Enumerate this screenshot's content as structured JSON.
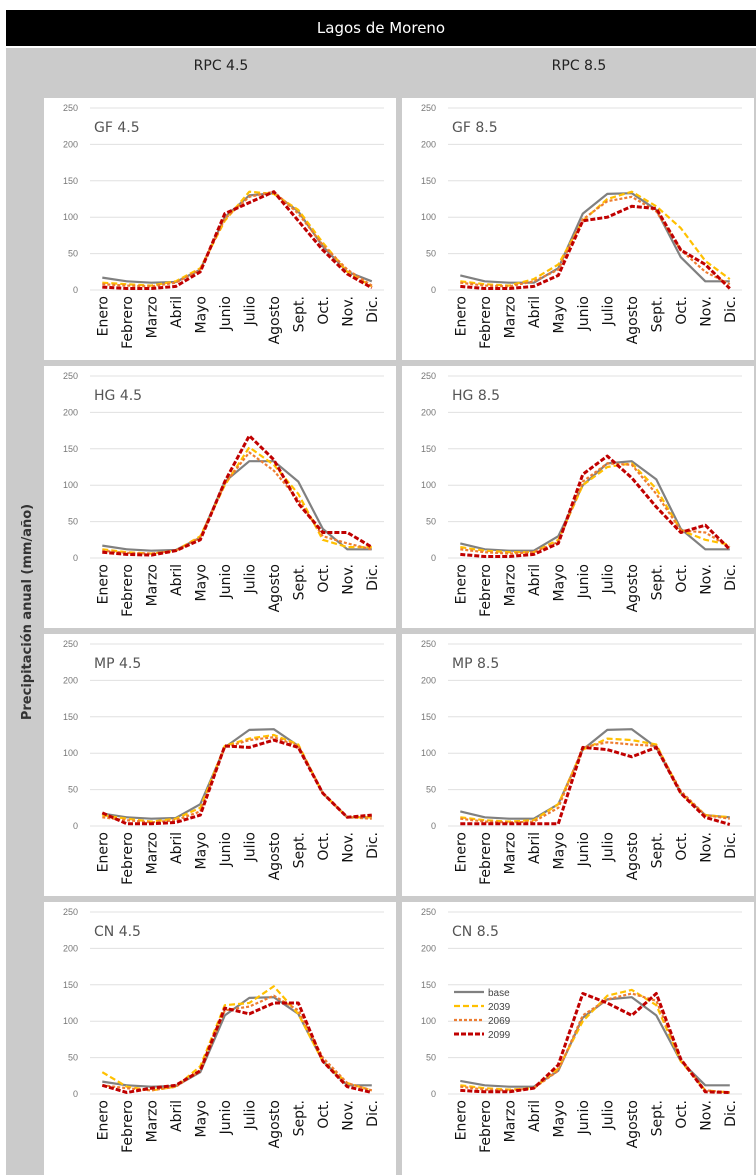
{
  "figure": {
    "title": "Lagos de Moreno",
    "columns": [
      "RPC 4.5",
      "RPC 8.5"
    ],
    "ylabel": "Precipitación anual (mm/año)"
  },
  "months": [
    "Enero",
    "Febrero",
    "Marzo",
    "Abril",
    "Mayo",
    "Junio",
    "Julio",
    "Agosto",
    "Sept.",
    "Oct.",
    "Nov.",
    "Dic."
  ],
  "legend": [
    "base",
    "2039",
    "2069",
    "2099"
  ],
  "colors": {
    "base": "#808080",
    "2039": "#ffc000",
    "2069": "#ed7d31",
    "2099": "#c00000"
  },
  "chart_data": [
    {
      "type": "line",
      "title": "GF 4.5",
      "ylim": [
        0,
        250
      ],
      "yticks": [
        0,
        50,
        100,
        150,
        200,
        250
      ],
      "x": [
        "Enero",
        "Febrero",
        "Marzo",
        "Abril",
        "Mayo",
        "Junio",
        "Julio",
        "Agosto",
        "Sept.",
        "Oct.",
        "Nov.",
        "Dic."
      ],
      "series": [
        {
          "name": "base",
          "values": [
            17,
            12,
            10,
            11,
            28,
            100,
            130,
            133,
            108,
            60,
            25,
            12
          ]
        },
        {
          "name": "2039",
          "values": [
            10,
            8,
            6,
            12,
            30,
            95,
            135,
            132,
            110,
            65,
            25,
            5
          ]
        },
        {
          "name": "2069",
          "values": [
            8,
            6,
            5,
            10,
            28,
            98,
            128,
            135,
            105,
            62,
            28,
            6
          ]
        },
        {
          "name": "2099",
          "values": [
            4,
            2,
            2,
            5,
            25,
            105,
            120,
            135,
            95,
            55,
            22,
            3
          ]
        }
      ]
    },
    {
      "type": "line",
      "title": "GF 8.5",
      "ylim": [
        0,
        250
      ],
      "yticks": [
        0,
        50,
        100,
        150,
        200,
        250
      ],
      "x": [
        "Enero",
        "Febrero",
        "Marzo",
        "Abril",
        "Mayo",
        "Junio",
        "Julio",
        "Agosto",
        "Sept.",
        "Oct.",
        "Nov.",
        "Dic."
      ],
      "series": [
        {
          "name": "base",
          "values": [
            20,
            12,
            10,
            10,
            30,
            105,
            132,
            133,
            110,
            45,
            12,
            12
          ]
        },
        {
          "name": "2039",
          "values": [
            12,
            8,
            6,
            15,
            35,
            95,
            125,
            135,
            115,
            85,
            40,
            15
          ]
        },
        {
          "name": "2069",
          "values": [
            10,
            6,
            5,
            12,
            28,
            97,
            122,
            128,
            108,
            55,
            25,
            8
          ]
        },
        {
          "name": "2099",
          "values": [
            5,
            2,
            2,
            5,
            20,
            95,
            100,
            115,
            112,
            55,
            35,
            2
          ]
        }
      ]
    },
    {
      "type": "line",
      "title": "HG 4.5",
      "ylim": [
        0,
        250
      ],
      "yticks": [
        0,
        50,
        100,
        150,
        200,
        250
      ],
      "x": [
        "Enero",
        "Febrero",
        "Marzo",
        "Abril",
        "Mayo",
        "Junio",
        "Julio",
        "Agosto",
        "Sept.",
        "Oct.",
        "Nov.",
        "Dic."
      ],
      "series": [
        {
          "name": "base",
          "values": [
            17,
            12,
            10,
            11,
            28,
            105,
            133,
            133,
            105,
            40,
            12,
            12
          ]
        },
        {
          "name": "2039",
          "values": [
            12,
            8,
            6,
            10,
            30,
            100,
            152,
            128,
            88,
            25,
            15,
            15
          ]
        },
        {
          "name": "2069",
          "values": [
            10,
            7,
            6,
            10,
            28,
            102,
            145,
            120,
            80,
            30,
            20,
            12
          ]
        },
        {
          "name": "2099",
          "values": [
            8,
            5,
            4,
            10,
            25,
            105,
            168,
            135,
            75,
            35,
            35,
            15
          ]
        }
      ]
    },
    {
      "type": "line",
      "title": "HG 8.5",
      "ylim": [
        0,
        250
      ],
      "yticks": [
        0,
        50,
        100,
        150,
        200,
        250
      ],
      "x": [
        "Enero",
        "Febrero",
        "Marzo",
        "Abril",
        "Mayo",
        "Junio",
        "Julio",
        "Agosto",
        "Sept.",
        "Oct.",
        "Nov.",
        "Dic."
      ],
      "series": [
        {
          "name": "base",
          "values": [
            20,
            12,
            10,
            10,
            30,
            100,
            130,
            133,
            108,
            40,
            12,
            12
          ]
        },
        {
          "name": "2039",
          "values": [
            15,
            10,
            8,
            8,
            25,
            100,
            125,
            130,
            95,
            38,
            25,
            18
          ]
        },
        {
          "name": "2069",
          "values": [
            12,
            8,
            6,
            8,
            22,
            105,
            130,
            128,
            88,
            38,
            35,
            15
          ]
        },
        {
          "name": "2099",
          "values": [
            5,
            2,
            2,
            5,
            20,
            115,
            140,
            110,
            70,
            35,
            45,
            12
          ]
        }
      ]
    },
    {
      "type": "line",
      "title": "MP 4.5",
      "ylim": [
        0,
        250
      ],
      "yticks": [
        0,
        50,
        100,
        150,
        200,
        250
      ],
      "x": [
        "Enero",
        "Febrero",
        "Marzo",
        "Abril",
        "Mayo",
        "Junio",
        "Julio",
        "Agosto",
        "Sept.",
        "Oct.",
        "Nov.",
        "Dic."
      ],
      "series": [
        {
          "name": "base",
          "values": [
            17,
            12,
            10,
            11,
            30,
            108,
            132,
            133,
            110,
            45,
            12,
            12
          ]
        },
        {
          "name": "2039",
          "values": [
            15,
            10,
            6,
            10,
            25,
            110,
            120,
            125,
            112,
            45,
            12,
            12
          ]
        },
        {
          "name": "2069",
          "values": [
            12,
            8,
            5,
            8,
            20,
            108,
            118,
            122,
            110,
            45,
            12,
            10
          ]
        },
        {
          "name": "2099",
          "values": [
            18,
            3,
            3,
            5,
            15,
            110,
            108,
            118,
            108,
            45,
            12,
            15
          ]
        }
      ]
    },
    {
      "type": "line",
      "title": "MP 8.5",
      "ylim": [
        0,
        250
      ],
      "yticks": [
        0,
        50,
        100,
        150,
        200,
        250
      ],
      "x": [
        "Enero",
        "Febrero",
        "Marzo",
        "Abril",
        "Mayo",
        "Junio",
        "Julio",
        "Agosto",
        "Sept.",
        "Oct.",
        "Nov.",
        "Dic."
      ],
      "series": [
        {
          "name": "base",
          "values": [
            20,
            12,
            10,
            10,
            30,
            105,
            132,
            133,
            108,
            45,
            15,
            12
          ]
        },
        {
          "name": "2039",
          "values": [
            12,
            8,
            6,
            8,
            30,
            105,
            120,
            118,
            112,
            45,
            15,
            12
          ]
        },
        {
          "name": "2069",
          "values": [
            10,
            6,
            5,
            6,
            25,
            108,
            115,
            112,
            110,
            48,
            15,
            10
          ]
        },
        {
          "name": "2099",
          "values": [
            3,
            3,
            3,
            3,
            3,
            108,
            105,
            95,
            108,
            45,
            12,
            2
          ]
        }
      ]
    },
    {
      "type": "line",
      "title": "CN 4.5",
      "ylim": [
        0,
        250
      ],
      "yticks": [
        0,
        50,
        100,
        150,
        200,
        250
      ],
      "x": [
        "Enero",
        "Febrero",
        "Marzo",
        "Abril",
        "Mayo",
        "Junio",
        "Julio",
        "Agosto",
        "Sept.",
        "Oct.",
        "Nov.",
        "Dic."
      ],
      "series": [
        {
          "name": "base",
          "values": [
            17,
            12,
            10,
            11,
            30,
            108,
            132,
            133,
            110,
            45,
            12,
            12
          ]
        },
        {
          "name": "2039",
          "values": [
            30,
            10,
            5,
            10,
            38,
            122,
            125,
            148,
            110,
            45,
            15,
            5
          ]
        },
        {
          "name": "2069",
          "values": [
            12,
            8,
            5,
            10,
            32,
            115,
            120,
            135,
            115,
            50,
            15,
            5
          ]
        },
        {
          "name": "2099",
          "values": [
            12,
            2,
            8,
            12,
            32,
            118,
            110,
            125,
            125,
            45,
            10,
            2
          ]
        }
      ]
    },
    {
      "type": "line",
      "title": "CN 8.5",
      "ylim": [
        0,
        250
      ],
      "yticks": [
        0,
        50,
        100,
        150,
        200,
        250
      ],
      "x": [
        "Enero",
        "Febrero",
        "Marzo",
        "Abril",
        "Mayo",
        "Junio",
        "Julio",
        "Agosto",
        "Sept.",
        "Oct.",
        "Nov.",
        "Dic."
      ],
      "series": [
        {
          "name": "base",
          "values": [
            18,
            12,
            10,
            10,
            32,
            105,
            130,
            133,
            108,
            45,
            12,
            12
          ]
        },
        {
          "name": "2039",
          "values": [
            12,
            8,
            6,
            8,
            35,
            100,
            135,
            143,
            122,
            45,
            5,
            2
          ]
        },
        {
          "name": "2069",
          "values": [
            10,
            6,
            5,
            8,
            32,
            108,
            130,
            138,
            128,
            48,
            5,
            2
          ]
        },
        {
          "name": "2099",
          "values": [
            5,
            3,
            3,
            8,
            40,
            138,
            125,
            108,
            138,
            48,
            3,
            2
          ]
        }
      ]
    }
  ]
}
